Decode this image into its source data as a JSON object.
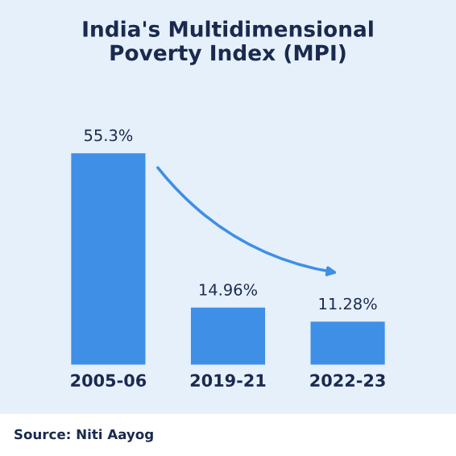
{
  "chart_data": {
    "type": "bar",
    "title": "India's Multidimensional\nPoverty Index (MPI)",
    "categories": [
      "2005-06",
      "2019-21",
      "2022-23"
    ],
    "values": [
      55.3,
      14.96,
      11.28
    ],
    "value_labels": [
      "55.3%",
      "14.96%",
      "11.28%"
    ],
    "color": "#3f8fe6",
    "annotations": [
      "Source: Niti Aayog"
    ],
    "grid": false,
    "legend": false
  }
}
